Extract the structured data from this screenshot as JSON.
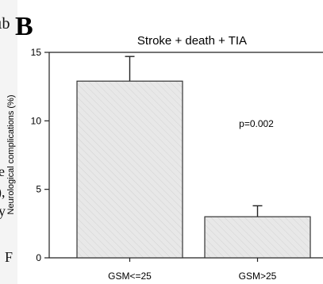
{
  "panel_label": "B",
  "margin_fragments": [
    "ıb",
    "e",
    "),",
    "y",
    "F"
  ],
  "chart_data": {
    "type": "bar",
    "title": "Stroke + death + TIA",
    "xlabel": "",
    "ylabel": "Neurological complications (%)",
    "ylim": [
      0,
      15
    ],
    "yticks": [
      0,
      5,
      10,
      15
    ],
    "categories": [
      "GSM<=25",
      "GSM>25"
    ],
    "values": [
      12.9,
      3.0
    ],
    "error_upper": [
      14.7,
      3.8
    ],
    "annotation": "p=0.002",
    "grid": false,
    "legend": "none",
    "bar_fill": "#e6e6e6",
    "bar_stroke": "#333333"
  }
}
